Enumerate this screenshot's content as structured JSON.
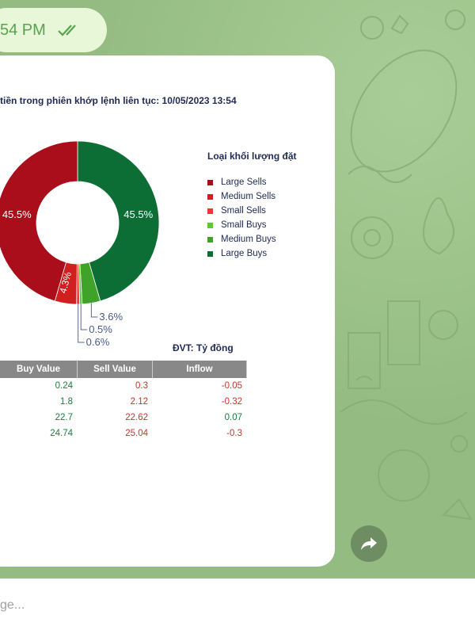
{
  "message": {
    "time": "54 PM"
  },
  "chart": {
    "title": "tiền trong phiên khớp lệnh liên tục: 10/05/2023 13:54",
    "legend_title": "Loại khối lượng đặt"
  },
  "chart_data": {
    "type": "pie",
    "title": "tiền trong phiên khớp lệnh liên tục: 10/05/2023 13:54",
    "legend_title": "Loại khối lượng đặt",
    "slices": [
      {
        "label": "Large Sells",
        "value": 45.5,
        "color": "#a90e1a"
      },
      {
        "label": "Medium Sells",
        "value": 4.3,
        "color": "#d01f1f"
      },
      {
        "label": "Small Sells",
        "value": 0.6,
        "color": "#f03535"
      },
      {
        "label": "Small Buys",
        "value": 0.5,
        "color": "#5fc535"
      },
      {
        "label": "Medium Buys",
        "value": 3.6,
        "color": "#3fa32a"
      },
      {
        "label": "Large Buys",
        "value": 45.5,
        "color": "#0d6e35"
      }
    ],
    "slice_labels": [
      "45.5%",
      "4.3%",
      "0.6%",
      "0.5%",
      "3.6%",
      "45.5%"
    ],
    "legend_placement": "right"
  },
  "legend": [
    {
      "label": "Large Sells",
      "color": "#a90e1a"
    },
    {
      "label": "Medium Sells",
      "color": "#d01f1f"
    },
    {
      "label": "Small Sells",
      "color": "#f03535"
    },
    {
      "label": "Small Buys",
      "color": "#5fc535"
    },
    {
      "label": "Medium Buys",
      "color": "#3fa32a"
    },
    {
      "label": "Large Buys",
      "color": "#0d6e35"
    }
  ],
  "table": {
    "unit": "ĐVT: Tỷ đồng",
    "headers": [
      "Buy Value",
      "Sell Value",
      "Inflow"
    ],
    "rows": [
      [
        "0.24",
        "0.3",
        "-0.05"
      ],
      [
        "1.8",
        "2.12",
        "-0.32"
      ],
      [
        "22.7",
        "22.62",
        "0.07"
      ],
      [
        "24.74",
        "25.04",
        "-0.3"
      ]
    ]
  },
  "composer": {
    "placeholder": "ge..."
  },
  "icons": {
    "forward": "forward-arrow-icon",
    "read_receipt": "double-check-icon"
  }
}
